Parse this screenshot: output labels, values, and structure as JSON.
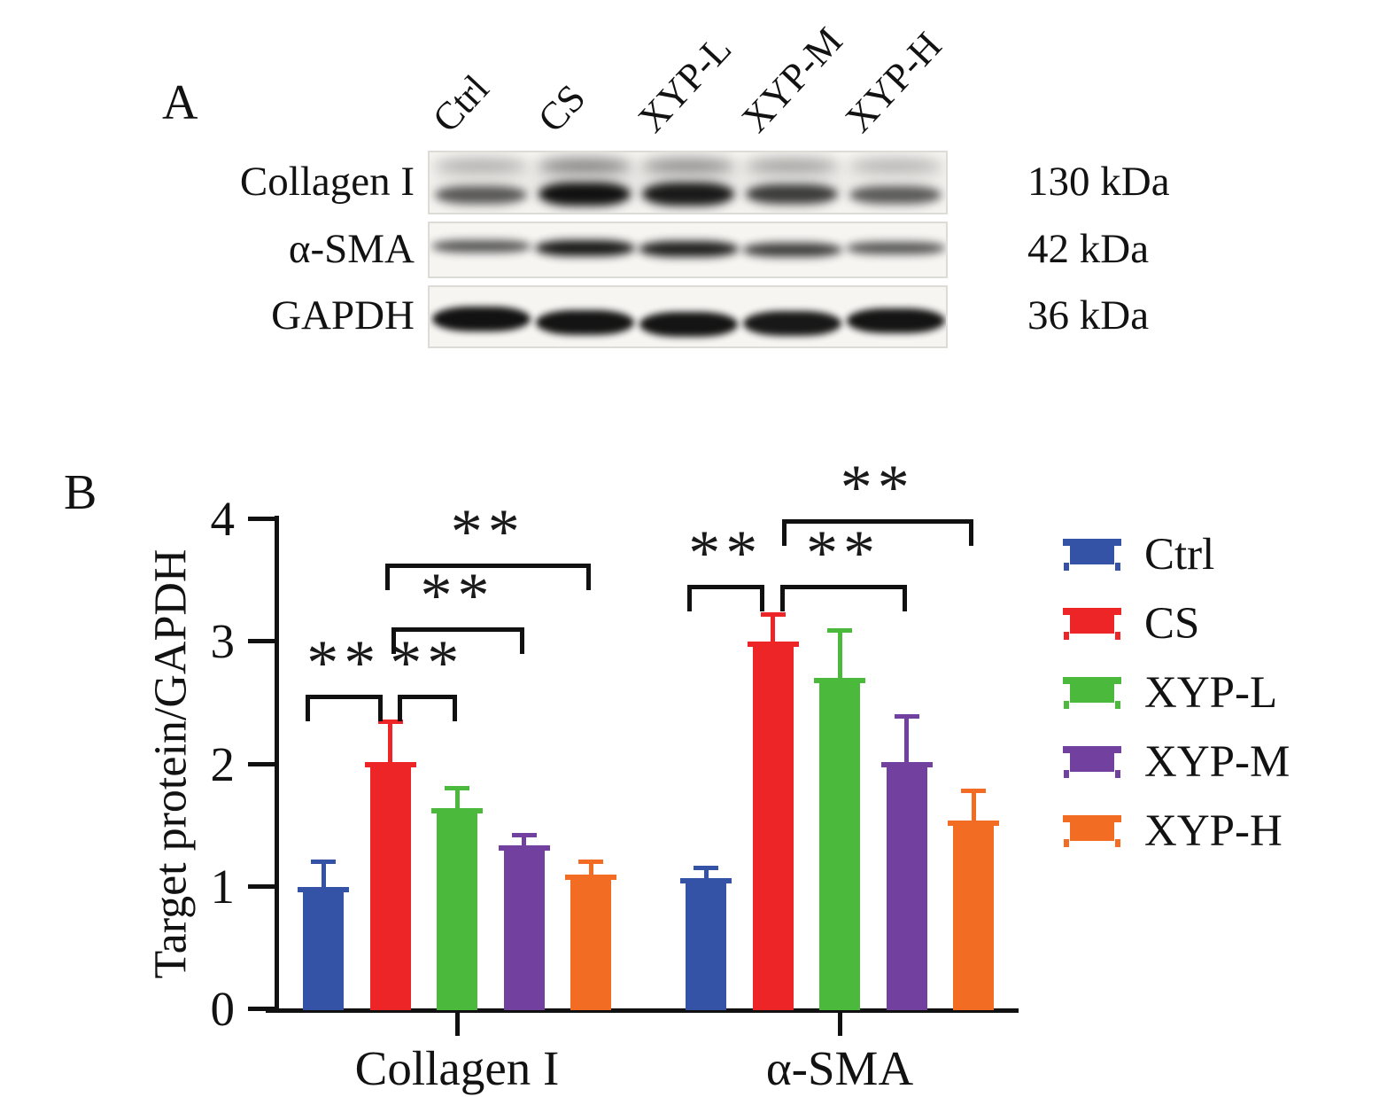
{
  "figure": {
    "panel_a": {
      "label": "A",
      "lanes": [
        "Ctrl",
        "CS",
        "XYP-L",
        "XYP-M",
        "XYP-H"
      ],
      "rows": [
        {
          "protein": "Collagen I",
          "kda": "130 kDa",
          "band_intensity": [
            0.5,
            0.97,
            0.9,
            0.68,
            0.48
          ],
          "smear_intensity": [
            0.3,
            0.52,
            0.46,
            0.36,
            0.28
          ]
        },
        {
          "protein": "α-SMA",
          "kda": "42 kDa",
          "band_intensity": [
            0.55,
            0.92,
            0.88,
            0.7,
            0.55
          ]
        },
        {
          "protein": "GAPDH",
          "kda": "36 kDa",
          "band_intensity": [
            0.97,
            0.94,
            0.95,
            0.92,
            0.95
          ]
        }
      ]
    },
    "panel_b": {
      "label": "B"
    }
  },
  "chart_data": {
    "type": "bar",
    "title": "",
    "xlabel": "",
    "ylabel": "Target protein/GAPDH",
    "ylim": [
      0,
      4
    ],
    "yticks": [
      0,
      1,
      2,
      3,
      4
    ],
    "grid": false,
    "legend_position": "right",
    "categories": [
      "Collagen I",
      "α-SMA"
    ],
    "series": [
      {
        "name": "Ctrl",
        "color": "#3452a6",
        "values": [
          0.98,
          1.05
        ],
        "errors": [
          0.22,
          0.1
        ]
      },
      {
        "name": "CS",
        "color": "#ee2526",
        "values": [
          2.0,
          2.98
        ],
        "errors": [
          0.34,
          0.24
        ]
      },
      {
        "name": "XYP-L",
        "color": "#4bb93c",
        "values": [
          1.62,
          2.68
        ],
        "errors": [
          0.18,
          0.41
        ]
      },
      {
        "name": "XYP-M",
        "color": "#7241a0",
        "values": [
          1.32,
          2.0
        ],
        "errors": [
          0.1,
          0.39
        ]
      },
      {
        "name": "XYP-H",
        "color": "#f26c24",
        "values": [
          1.08,
          1.52
        ],
        "errors": [
          0.12,
          0.26
        ]
      }
    ],
    "significance": [
      {
        "label": "**",
        "group": 0,
        "from": "Ctrl",
        "to": "CS",
        "y": 2.56
      },
      {
        "label": "**",
        "group": 0,
        "from": "CS",
        "to": "XYP-L",
        "y": 2.56
      },
      {
        "label": "**",
        "group": 0,
        "from": "CS",
        "to": "XYP-M",
        "y": 3.11
      },
      {
        "label": "**",
        "group": 0,
        "from": "CS",
        "to": "XYP-H",
        "y": 3.63
      },
      {
        "label": "**",
        "group": 1,
        "from": "Ctrl",
        "to": "CS",
        "y": 3.46
      },
      {
        "label": "**",
        "group": 1,
        "from": "CS",
        "to": "XYP-M",
        "y": 3.46
      },
      {
        "label": "**",
        "group": 1,
        "from": "CS",
        "to": "XYP-H",
        "y": 3.99
      }
    ]
  }
}
